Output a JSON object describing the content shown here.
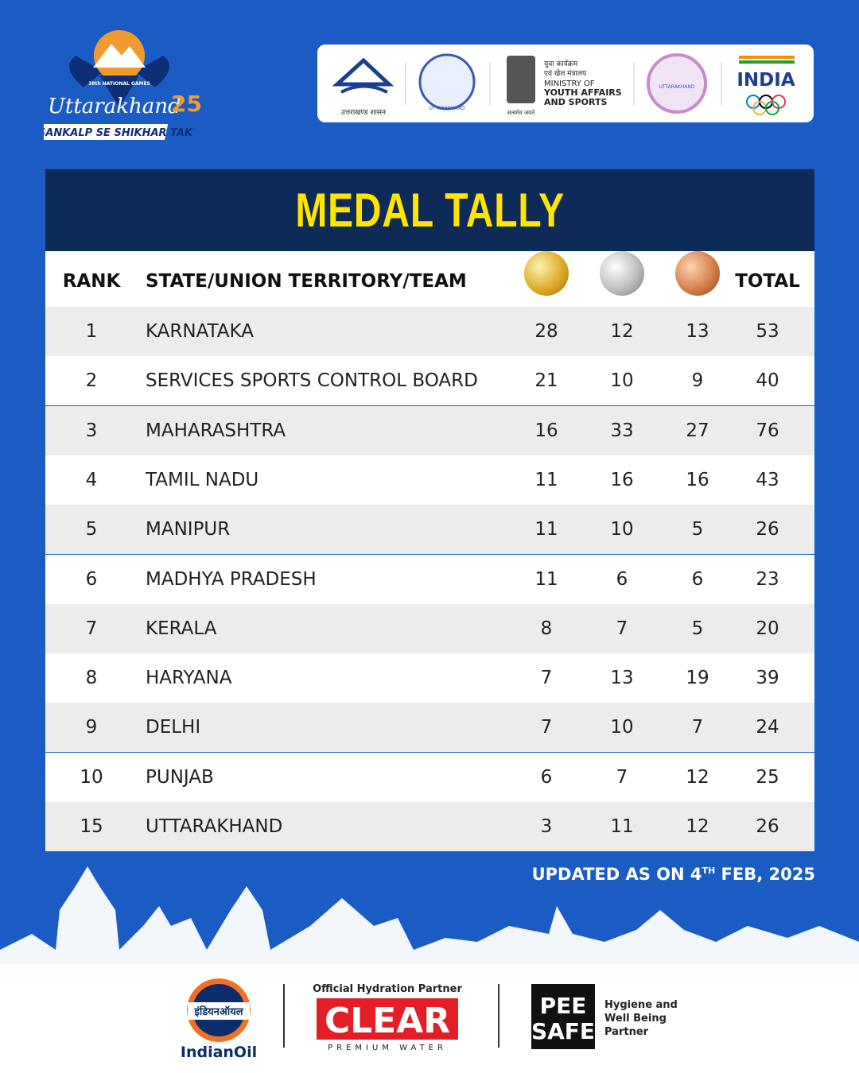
{
  "logo": {
    "edition": "38th NATIONAL GAMES",
    "name": "Uttarakhand",
    "number": "25",
    "tagline": "SANKALP SE SHIKHAR TAK"
  },
  "partners": {
    "state_gov": "उत्तराखण्ड शासन",
    "games_logo": "UTTARAKHAND",
    "ministry_hindi_1": "युवा कार्यक्रम",
    "ministry_hindi_2": "एवं खेल मंत्रालय",
    "ministry_1": "MINISTRY OF",
    "ministry_2": "YOUTH AFFAIRS",
    "ministry_3": "AND SPORTS",
    "emblem_motto": "सत्यमेव जयते",
    "olympic_assoc": "UTTARAKHAND",
    "india": "INDIA"
  },
  "title": "MEDAL TALLY",
  "table": {
    "headers": [
      "RANK",
      "STATE/UNION TERRITORY/TEAM",
      "TOTAL"
    ],
    "rows": [
      [
        1,
        "KARNATAKA",
        28,
        12,
        13,
        53
      ],
      [
        2,
        "SERVICES SPORTS CONTROL BOARD",
        21,
        10,
        9,
        40
      ],
      [
        3,
        "MAHARASHTRA",
        16,
        33,
        27,
        76
      ],
      [
        4,
        "TAMIL NADU",
        11,
        16,
        16,
        43
      ],
      [
        5,
        "MANIPUR",
        11,
        10,
        5,
        26
      ],
      [
        6,
        "MADHYA PRADESH",
        11,
        6,
        6,
        23
      ],
      [
        7,
        "KERALA",
        8,
        7,
        5,
        20
      ],
      [
        8,
        "HARYANA",
        7,
        13,
        19,
        39
      ],
      [
        9,
        "DELHI",
        7,
        10,
        7,
        24
      ],
      [
        10,
        "PUNJAB",
        6,
        7,
        12,
        25
      ],
      [
        15,
        "UTTARAKHAND",
        3,
        11,
        12,
        26
      ]
    ]
  },
  "updated": {
    "before": "UPDATED AS ON 4",
    "sup": "TH",
    "after": " FEB, 2025"
  },
  "sponsors": {
    "indianoil_hindi": "इंडियनऑयल",
    "indianoil": "IndianOil",
    "clear_role": "Official Hydration Partner",
    "clear": "CLEAR",
    "clear_sub": "PREMIUM WATER",
    "peesafe_1": "PEE",
    "peesafe_2": "SAFE",
    "peesafe_role_1": "Hygiene and",
    "peesafe_role_2": "Well Being",
    "peesafe_role_3": "Partner"
  }
}
